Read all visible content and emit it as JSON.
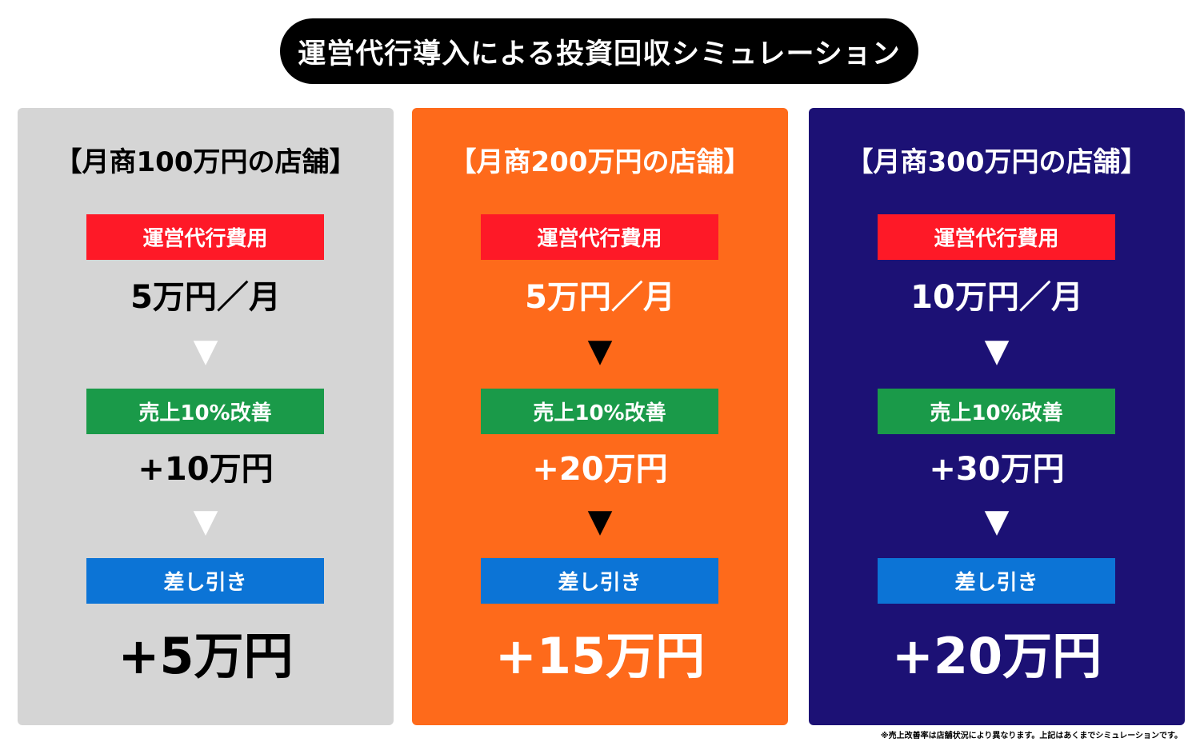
{
  "title": "運営代行導入による投資回収シミュレーション",
  "colors": {
    "cost_label_bg": "#fe1927",
    "improve_label_bg": "#1a9a49",
    "diff_label_bg": "#0c74d6"
  },
  "arrow_glyph": "▼",
  "cards": [
    {
      "bg": "#d5d5d5",
      "text_color": "#000000",
      "arrow_color": "#ffffff",
      "title": "【月商100万円の店舗】",
      "cost_label": "運営代行費用",
      "cost_value": "5万円／月",
      "improve_label": "売上10%改善",
      "improve_value": "+10万円",
      "diff_label": "差し引き",
      "diff_value": "+5万円"
    },
    {
      "bg": "#fe6a1b",
      "text_color": "#ffffff",
      "arrow_color": "#000000",
      "title": "【月商200万円の店舗】",
      "cost_label": "運営代行費用",
      "cost_value": "5万円／月",
      "improve_label": "売上10%改善",
      "improve_value": "+20万円",
      "diff_label": "差し引き",
      "diff_value": "+15万円"
    },
    {
      "bg": "#1c1175",
      "text_color": "#ffffff",
      "arrow_color": "#ffffff",
      "title": "【月商300万円の店舗】",
      "cost_label": "運営代行費用",
      "cost_value": "10万円／月",
      "improve_label": "売上10%改善",
      "improve_value": "+30万円",
      "diff_label": "差し引き",
      "diff_value": "+20万円"
    }
  ],
  "footnote": "※売上改善率は店舗状況により異なります。上記はあくまでシミュレーションです。"
}
